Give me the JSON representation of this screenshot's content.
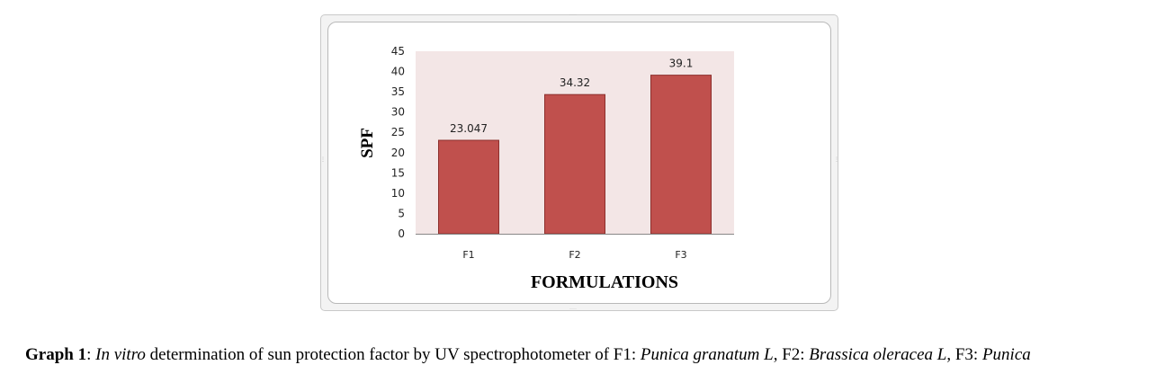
{
  "chart_data": {
    "type": "bar",
    "categories": [
      "F1",
      "F2",
      "F3"
    ],
    "values": [
      23.047,
      34.32,
      39.1
    ],
    "value_labels": [
      "23.047",
      "34.32",
      "39.1"
    ],
    "xlabel": "FORMULATIONS",
    "ylabel": "SPF",
    "ylim": [
      0,
      45
    ],
    "yticks": [
      0,
      5,
      10,
      15,
      20,
      25,
      30,
      35,
      40,
      45
    ],
    "grid": false,
    "legend": "none",
    "colors": {
      "bar": "#c0504d",
      "bar_edge": "#8c2f2c",
      "plot_bg": "#f3e6e6",
      "axis": "#888888"
    }
  },
  "caption": {
    "label": "Graph 1",
    "sep1": ": ",
    "italic1": "In vitro",
    "text1": " determination of sun protection factor by UV spectrophotometer of F1: ",
    "italic2": "Punica granatum L",
    "text2": ", F2: ",
    "italic3": "Brassica oleracea L",
    "text3": ", F3: ",
    "italic4": "Punica"
  }
}
